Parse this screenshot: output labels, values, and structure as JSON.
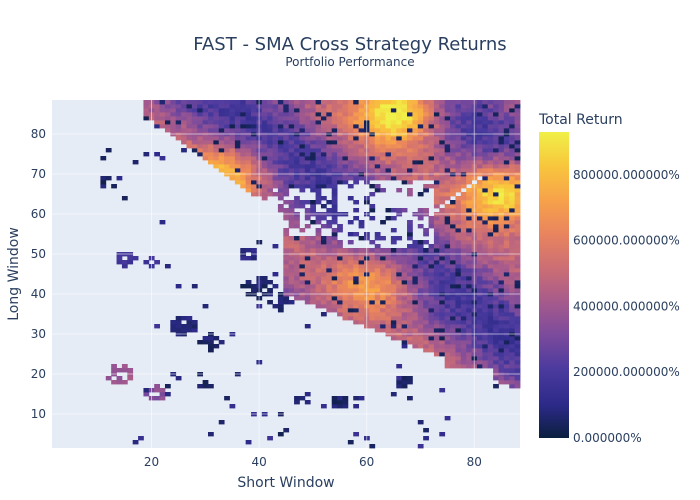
{
  "chart_data": {
    "type": "heatmap",
    "title": "FAST - SMA Cross Strategy Returns",
    "subtitle": "Portfolio Performance",
    "xlabel": "Short Window",
    "ylabel": "Long Window",
    "x_range": [
      1,
      89
    ],
    "y_range": [
      1,
      89
    ],
    "xlim": [
      1.5,
      88.5
    ],
    "ylim": [
      1.5,
      88.5
    ],
    "x_ticks": [
      20,
      40,
      60,
      80
    ],
    "y_ticks": [
      10,
      20,
      30,
      40,
      50,
      60,
      70,
      80
    ],
    "x_tick_labels": [
      "20",
      "40",
      "60",
      "80"
    ],
    "y_tick_labels": [
      "10",
      "20",
      "30",
      "40",
      "50",
      "60",
      "70",
      "80"
    ],
    "colorbar": {
      "title": "Total Return",
      "min": 0,
      "max": 930000,
      "ticks": [
        0,
        200000,
        400000,
        600000,
        800000
      ],
      "tick_labels": [
        "0.000000%",
        "200000.000000%",
        "400000.000000%",
        "600000.000000%",
        "800000.000000%"
      ]
    },
    "colorscale": [
      "#0d0887",
      "#46039f",
      "#7201a8",
      "#9c179e",
      "#bd3786",
      "#d8576b",
      "#ed7953",
      "#fb9f3a",
      "#fdca26",
      "#f0f921"
    ],
    "colorscale_display": [
      "#0b1f3f",
      "#2d2a8a",
      "#4a3a9e",
      "#7a4a9c",
      "#a65a8c",
      "#cc6e74",
      "#e9845e",
      "#f7a24a",
      "#f8c63c",
      "#f0f048"
    ],
    "hotspots": [
      {
        "x": 66,
        "y": 86,
        "value": 930000
      },
      {
        "x": 86,
        "y": 66,
        "value": 900000
      },
      {
        "x": 62,
        "y": 44,
        "value": 600000
      },
      {
        "x": 34,
        "y": 70,
        "value": 650000
      },
      {
        "x": 14,
        "y": 20,
        "value": 520000
      },
      {
        "x": 21,
        "y": 15,
        "value": 480000
      }
    ],
    "grid": true,
    "background": "#e5ecf6"
  }
}
